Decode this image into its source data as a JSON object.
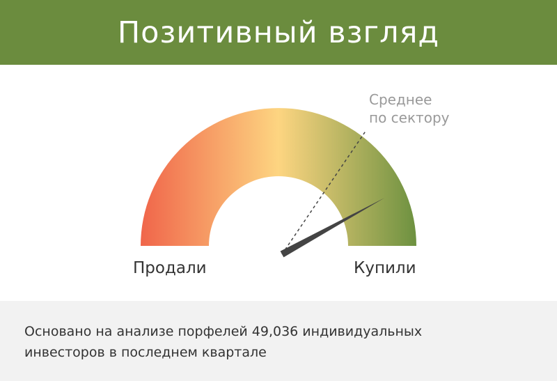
{
  "header": {
    "title": "Позитивный взгляд"
  },
  "gauge": {
    "left_label": "Продали",
    "right_label": "Купили",
    "needle_value": 0.84,
    "sector_average_value": 0.69,
    "sector_average_label_line1": "Среднее",
    "sector_average_label_line2": "по сектору",
    "colors": {
      "left": "#f0654a",
      "middle": "#fdd581",
      "right": "#6d9140",
      "needle": "#444444"
    }
  },
  "footer": {
    "text": "Основано на анализе порфелей 49,036 индивидуальных инвесторов в последнем квартале"
  }
}
